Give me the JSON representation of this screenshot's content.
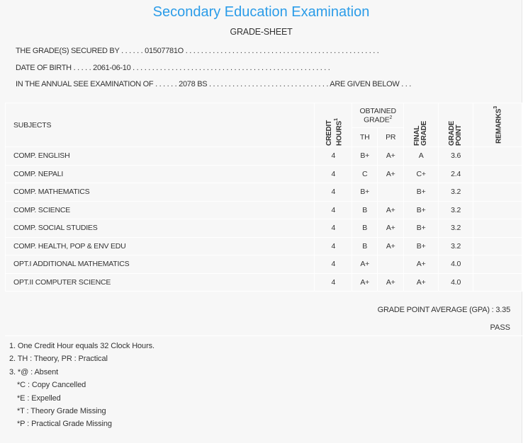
{
  "title": "Secondary Education Examination",
  "subtitle": "GRADE-SHEET",
  "info": {
    "secured_by": "THE GRADE(S) SECURED BY . . . . . . 01507781O . . . . . . . . . . . . . . . . . . . . . . . . . . . . . . . . . . . . . . . . . . . . . . . . . .",
    "dob": "DATE OF BIRTH . . . . . 2061-06-10 . . . . . . . . . . . . . . . . . . . . . . . . . . . . . . . . . . . . . . . . . . . . . . . . . . .",
    "exam": "IN THE ANNUAL SEE EXAMINATION OF . . . . . . 2078 BS . . . . . . . . . . . . . . . . . . . . . . . . . . . . . . . ARE GIVEN BELOW . . ."
  },
  "headers": {
    "subjects": "SUBJECTS",
    "credit": "CREDIT HOURS",
    "credit_sup": "1",
    "obtained": "OBTAINED GRADE",
    "obtained_sup": "2",
    "th": "TH",
    "pr": "PR",
    "final": "FINAL GRADE",
    "point": "GRADE POINT",
    "remarks": "REMARKS",
    "remarks_sup": "3"
  },
  "rows": [
    {
      "subject": "COMP. ENGLISH",
      "credit": "4",
      "th": "B+",
      "pr": "A+",
      "final": "A",
      "point": "3.6",
      "remarks": ""
    },
    {
      "subject": "COMP. NEPALI",
      "credit": "4",
      "th": "C",
      "pr": "A+",
      "final": "C+",
      "point": "2.4",
      "remarks": ""
    },
    {
      "subject": "COMP. MATHEMATICS",
      "credit": "4",
      "th": "B+",
      "pr": "",
      "final": "B+",
      "point": "3.2",
      "remarks": ""
    },
    {
      "subject": "COMP. SCIENCE",
      "credit": "4",
      "th": "B",
      "pr": "A+",
      "final": "B+",
      "point": "3.2",
      "remarks": ""
    },
    {
      "subject": "COMP. SOCIAL STUDIES",
      "credit": "4",
      "th": "B",
      "pr": "A+",
      "final": "B+",
      "point": "3.2",
      "remarks": ""
    },
    {
      "subject": "COMP. HEALTH, POP & ENV EDU",
      "credit": "4",
      "th": "B",
      "pr": "A+",
      "final": "B+",
      "point": "3.2",
      "remarks": ""
    },
    {
      "subject": "OPT.I ADDITIONAL MATHEMATICS",
      "credit": "4",
      "th": "A+",
      "pr": "",
      "final": "A+",
      "point": "4.0",
      "remarks": ""
    },
    {
      "subject": "OPT.II COMPUTER SCIENCE",
      "credit": "4",
      "th": "A+",
      "pr": "A+",
      "final": "A+",
      "point": "4.0",
      "remarks": ""
    }
  ],
  "gpa": "GRADE POINT AVERAGE (GPA) : 3.35",
  "result": "PASS",
  "footnotes": [
    "1. One Credit Hour equals 32 Clock Hours.",
    "2. TH : Theory, PR : Practical",
    "3. *@ : Absent",
    "*C : Copy Cancelled",
    "*E : Expelled",
    "*T : Theory Grade Missing",
    "*P : Practical Grade Missing"
  ]
}
